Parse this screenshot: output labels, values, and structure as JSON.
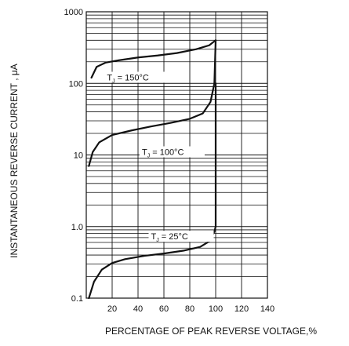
{
  "chart_data": {
    "type": "line",
    "title": "",
    "xlabel": "PERCENTAGE OF PEAK REVERSE VOLTAGE,%",
    "ylabel": "INSTANTANEOUS REVERSE CURRENT , μA",
    "x_range": [
      0,
      140
    ],
    "y_range": [
      0.1,
      1000
    ],
    "y_scale": "log",
    "grid": true,
    "x_ticks": [
      20,
      40,
      60,
      80,
      100,
      120,
      140
    ],
    "x_tick_labels": [
      "20",
      "40",
      "60",
      "80",
      "100",
      "120",
      "140"
    ],
    "y_ticks": [
      0.1,
      1,
      10,
      100,
      1000
    ],
    "y_tick_labels": [
      "0.1",
      "1.0",
      "10",
      "100",
      "1000"
    ],
    "series": [
      {
        "name": "T⁣J = 150°C",
        "label_sub": "J",
        "label_text_before": "T",
        "label_text_after": " = 150°C",
        "label_at": [
          16,
          110
        ],
        "points": [
          [
            4,
            120
          ],
          [
            8,
            170
          ],
          [
            15,
            195
          ],
          [
            25,
            210
          ],
          [
            40,
            230
          ],
          [
            55,
            245
          ],
          [
            70,
            265
          ],
          [
            85,
            300
          ],
          [
            95,
            340
          ],
          [
            100,
            400
          ]
        ]
      },
      {
        "name": "T⁣J = 100°C",
        "label_sub": "J",
        "label_text_before": "T",
        "label_text_after": " = 100°C",
        "label_at": [
          43,
          10
        ],
        "points": [
          [
            2,
            7
          ],
          [
            5,
            11
          ],
          [
            10,
            15
          ],
          [
            20,
            19
          ],
          [
            35,
            22
          ],
          [
            50,
            25
          ],
          [
            65,
            28
          ],
          [
            80,
            32
          ],
          [
            90,
            38
          ],
          [
            96,
            55
          ],
          [
            99,
            100
          ],
          [
            100,
            400
          ]
        ]
      },
      {
        "name": "T⁣J = 25°C",
        "label_sub": "J",
        "label_text_before": "T",
        "label_text_after": " = 25°C",
        "label_at": [
          50,
          0.66
        ],
        "points": [
          [
            2,
            0.1
          ],
          [
            6,
            0.17
          ],
          [
            12,
            0.25
          ],
          [
            20,
            0.31
          ],
          [
            30,
            0.35
          ],
          [
            45,
            0.39
          ],
          [
            60,
            0.42
          ],
          [
            75,
            0.46
          ],
          [
            88,
            0.52
          ],
          [
            95,
            0.62
          ],
          [
            99,
            0.85
          ],
          [
            100,
            1.0
          ],
          [
            100,
            100
          ]
        ]
      }
    ]
  }
}
